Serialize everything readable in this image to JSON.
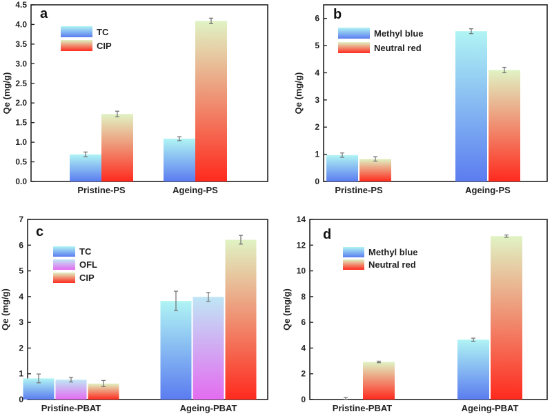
{
  "chart_data": [
    {
      "type": "bar",
      "panel_label": "a",
      "title": "",
      "xlabel": "",
      "ylabel": "Qe (mg/g)",
      "ylim": [
        0,
        4.5
      ],
      "yticks": [
        "0.0",
        "0.5",
        "1.0",
        "1.5",
        "2.0",
        "2.5",
        "3.0",
        "3.5",
        "4.0",
        "4.5"
      ],
      "ytick_values": [
        0,
        0.5,
        1,
        1.5,
        2,
        2.5,
        3,
        3.5,
        4,
        4.5
      ],
      "categories": [
        "Pristine-PS",
        "Ageing-PS"
      ],
      "legend_position": "top-left",
      "series": [
        {
          "name": "TC",
          "values": [
            0.69,
            1.09
          ],
          "errors": [
            0.06,
            0.05
          ],
          "gradient": [
            "#b0f4f4",
            "#5b7cf0"
          ]
        },
        {
          "name": "CIP",
          "values": [
            1.72,
            4.09
          ],
          "errors": [
            0.07,
            0.07
          ],
          "gradient": [
            "#e0f3c4",
            "#ff2a1e"
          ]
        }
      ]
    },
    {
      "type": "bar",
      "panel_label": "b",
      "title": "",
      "xlabel": "",
      "ylabel": "Qe (mg/g)",
      "ylim": [
        0,
        6.5
      ],
      "yticks": [
        "0",
        "1",
        "2",
        "3",
        "4",
        "5",
        "6"
      ],
      "ytick_values": [
        0,
        1,
        2,
        3,
        4,
        5,
        6
      ],
      "categories": [
        "Pristine-PS",
        "Ageing-PS"
      ],
      "legend_position": "top-left",
      "series": [
        {
          "name": "Methyl blue",
          "values": [
            0.97,
            5.53
          ],
          "errors": [
            0.08,
            0.09
          ],
          "gradient": [
            "#b0f4f4",
            "#5b7cf0"
          ]
        },
        {
          "name": "Neutral red",
          "values": [
            0.83,
            4.1
          ],
          "errors": [
            0.08,
            0.1
          ],
          "gradient": [
            "#e0f3c4",
            "#ff2a1e"
          ]
        }
      ]
    },
    {
      "type": "bar",
      "panel_label": "c",
      "title": "",
      "xlabel": "",
      "ylabel": "Qe (mg/g)",
      "ylim": [
        0,
        7
      ],
      "yticks": [
        "0",
        "1",
        "2",
        "3",
        "4",
        "5",
        "6",
        "7"
      ],
      "ytick_values": [
        0,
        1,
        2,
        3,
        4,
        5,
        6,
        7
      ],
      "categories": [
        "Pristine-PBAT",
        "Ageing-PBAT"
      ],
      "legend_position": "top-left",
      "series": [
        {
          "name": "TC",
          "values": [
            0.82,
            3.83
          ],
          "errors": [
            0.17,
            0.38
          ],
          "gradient": [
            "#b0f4f4",
            "#5b7cf0"
          ]
        },
        {
          "name": "OFL",
          "values": [
            0.77,
            3.99
          ],
          "errors": [
            0.09,
            0.17
          ],
          "gradient": [
            "#bfe6f5",
            "#e46cf0"
          ]
        },
        {
          "name": "CIP",
          "values": [
            0.62,
            6.21
          ],
          "errors": [
            0.12,
            0.17
          ],
          "gradient": [
            "#e0f3c4",
            "#ff2a1e"
          ]
        }
      ]
    },
    {
      "type": "bar",
      "panel_label": "d",
      "title": "",
      "xlabel": "",
      "ylabel": "Qe (mg/g)",
      "ylim": [
        0,
        14
      ],
      "yticks": [
        "0",
        "2",
        "4",
        "6",
        "8",
        "10",
        "12",
        "14"
      ],
      "ytick_values": [
        0,
        2,
        4,
        6,
        8,
        10,
        12,
        14
      ],
      "categories": [
        "Pristine-PBAT",
        "Ageing-PBAT"
      ],
      "legend_position": "top-left",
      "series": [
        {
          "name": "Methyl blue",
          "values": [
            0.0,
            4.65
          ],
          "errors": [
            0.15,
            0.12
          ],
          "gradient": [
            "#b0f4f4",
            "#5b7cf0"
          ]
        },
        {
          "name": "Neutral red",
          "values": [
            2.92,
            12.7
          ],
          "errors": [
            0.06,
            0.09
          ],
          "gradient": [
            "#e0f3c4",
            "#ff2a1e"
          ]
        }
      ]
    }
  ]
}
